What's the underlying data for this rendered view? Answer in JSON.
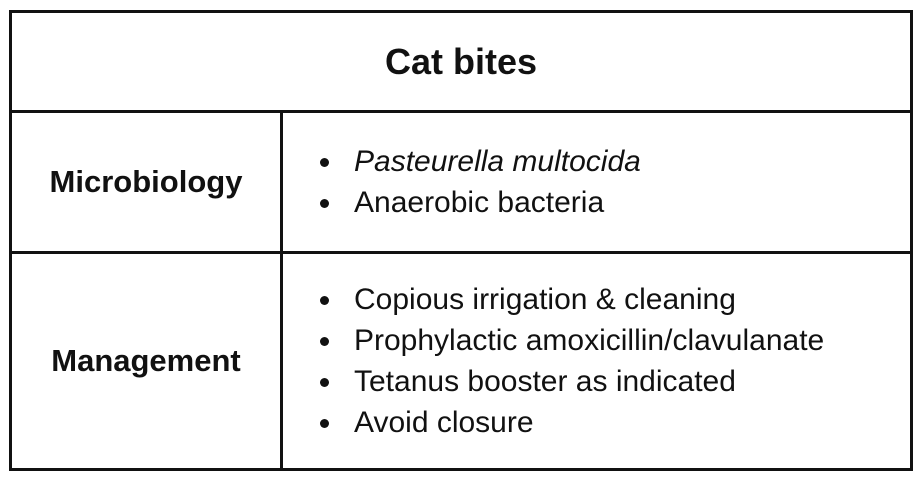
{
  "title": "Cat bites",
  "rows": [
    {
      "label": "Microbiology",
      "items": [
        {
          "text": "Pasteurella multocida",
          "italic": true
        },
        {
          "text": "Anaerobic bacteria",
          "italic": false
        }
      ]
    },
    {
      "label": "Management",
      "items": [
        {
          "text": "Copious irrigation & cleaning",
          "italic": false
        },
        {
          "text": "Prophylactic amoxicillin/clavulanate",
          "italic": false
        },
        {
          "text": "Tetanus booster as indicated",
          "italic": false
        },
        {
          "text": "Avoid closure",
          "italic": false
        }
      ]
    }
  ]
}
